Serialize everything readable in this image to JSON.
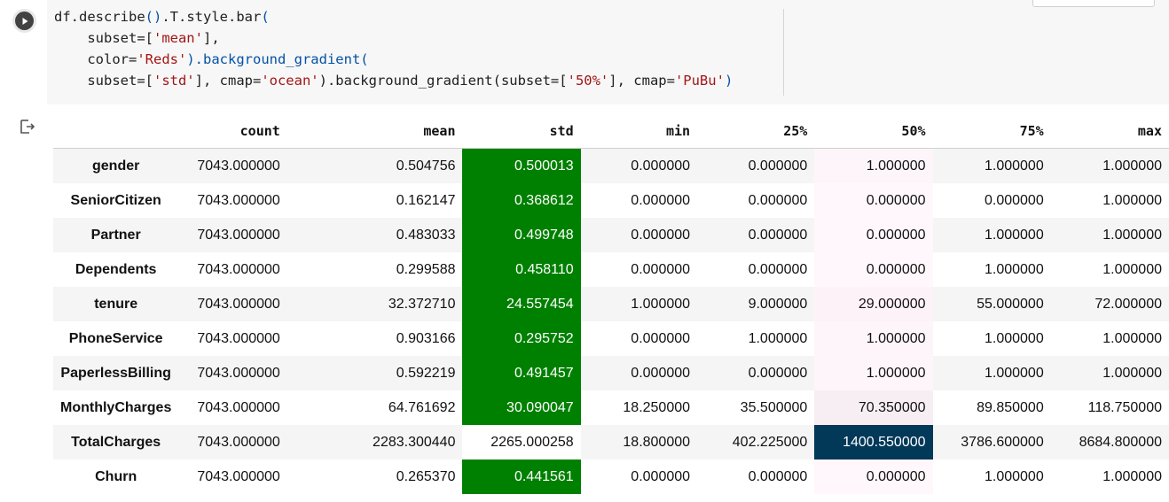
{
  "code": {
    "lines": [
      [
        {
          "t": "df.describe",
          "c": ""
        },
        {
          "t": "()",
          "c": "par"
        },
        {
          "t": ".T.style.bar",
          "c": ""
        },
        {
          "t": "(",
          "c": "par"
        }
      ],
      [
        {
          "t": "    subset=[",
          "c": ""
        },
        {
          "t": "'mean'",
          "c": "str"
        },
        {
          "t": "],",
          "c": ""
        }
      ],
      [
        {
          "t": "    color=",
          "c": ""
        },
        {
          "t": "'Reds'",
          "c": "str"
        },
        {
          "t": ").background_gradient(",
          "c": "par"
        }
      ],
      [
        {
          "t": "    subset=[",
          "c": ""
        },
        {
          "t": "'std'",
          "c": "str"
        },
        {
          "t": "], cmap=",
          "c": ""
        },
        {
          "t": "'ocean'",
          "c": "str"
        },
        {
          "t": ").background_gradient(subset=[",
          "c": ""
        },
        {
          "t": "'50%'",
          "c": "str"
        },
        {
          "t": "], cmap=",
          "c": ""
        },
        {
          "t": "'PuBu'",
          "c": "str"
        },
        {
          "t": ")",
          "c": "par"
        }
      ]
    ]
  },
  "table": {
    "columns": [
      "count",
      "mean",
      "std",
      "min",
      "25%",
      "50%",
      "75%",
      "max"
    ],
    "rows": [
      {
        "label": "gender",
        "values": [
          "7043.000000",
          "0.504756",
          "0.500013",
          "0.000000",
          "0.000000",
          "1.000000",
          "1.000000",
          "1.000000"
        ],
        "std_bg": "#008000",
        "p50_bg": "#fdf5fa",
        "p50_fg": "#111111"
      },
      {
        "label": "SeniorCitizen",
        "values": [
          "7043.000000",
          "0.162147",
          "0.368612",
          "0.000000",
          "0.000000",
          "0.000000",
          "0.000000",
          "1.000000"
        ],
        "std_bg": "#008000",
        "p50_bg": "#fff7fb",
        "p50_fg": "#111111"
      },
      {
        "label": "Partner",
        "values": [
          "7043.000000",
          "0.483033",
          "0.499748",
          "0.000000",
          "0.000000",
          "0.000000",
          "1.000000",
          "1.000000"
        ],
        "std_bg": "#008000",
        "p50_bg": "#fff7fb",
        "p50_fg": "#111111"
      },
      {
        "label": "Dependents",
        "values": [
          "7043.000000",
          "0.299588",
          "0.458110",
          "0.000000",
          "0.000000",
          "0.000000",
          "1.000000",
          "1.000000"
        ],
        "std_bg": "#008000",
        "p50_bg": "#fff7fb",
        "p50_fg": "#111111"
      },
      {
        "label": "tenure",
        "values": [
          "7043.000000",
          "32.372710",
          "24.557454",
          "1.000000",
          "9.000000",
          "29.000000",
          "55.000000",
          "72.000000"
        ],
        "std_bg": "#008000",
        "p50_bg": "#fdf2f8",
        "p50_fg": "#111111"
      },
      {
        "label": "PhoneService",
        "values": [
          "7043.000000",
          "0.903166",
          "0.295752",
          "0.000000",
          "1.000000",
          "1.000000",
          "1.000000",
          "1.000000"
        ],
        "std_bg": "#008000",
        "p50_bg": "#fdf5fa",
        "p50_fg": "#111111"
      },
      {
        "label": "PaperlessBilling",
        "values": [
          "7043.000000",
          "0.592219",
          "0.491457",
          "0.000000",
          "0.000000",
          "1.000000",
          "1.000000",
          "1.000000"
        ],
        "std_bg": "#008000",
        "p50_bg": "#fdf5fa",
        "p50_fg": "#111111"
      },
      {
        "label": "MonthlyCharges",
        "values": [
          "7043.000000",
          "64.761692",
          "30.090047",
          "18.250000",
          "35.500000",
          "70.350000",
          "89.850000",
          "118.750000"
        ],
        "std_bg": "#008000",
        "p50_bg": "#f7eef3",
        "p50_fg": "#111111"
      },
      {
        "label": "TotalCharges",
        "values": [
          "7043.000000",
          "2283.300440",
          "2265.000258",
          "18.800000",
          "402.225000",
          "1400.550000",
          "3786.600000",
          "8684.800000"
        ],
        "std_bg": "#ffffff",
        "std_fg": "#111111",
        "p50_bg": "#023858",
        "p50_fg": "#ffffff"
      },
      {
        "label": "Churn",
        "values": [
          "7043.000000",
          "0.265370",
          "0.441561",
          "0.000000",
          "0.000000",
          "0.000000",
          "1.000000",
          "1.000000"
        ],
        "std_bg": "#008000",
        "p50_bg": "#fff7fb",
        "p50_fg": "#111111"
      }
    ]
  }
}
